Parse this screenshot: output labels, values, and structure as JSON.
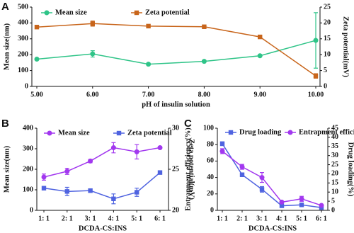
{
  "chart_data": [
    {
      "type": "line",
      "label": "A",
      "x_label": "pH of insulin solution",
      "y_label": "Mean size(nm)",
      "y2_label": "Zeta potential(mV)",
      "categories": [
        "5.00",
        "6.00",
        "7.00",
        "8.00",
        "9.00",
        "10.00"
      ],
      "ylim": [
        0,
        500
      ],
      "yticks": [
        0,
        100,
        200,
        300,
        400,
        500
      ],
      "y2lim": [
        0,
        25
      ],
      "y2ticks": [
        0,
        5,
        10,
        15,
        20,
        25
      ],
      "series": [
        {
          "name": "Mean size",
          "color": "#2fc488",
          "marker": "circle",
          "values": [
            172,
            205,
            140,
            158,
            193,
            290
          ],
          "errors": [
            5,
            20,
            5,
            5,
            5,
            175
          ]
        },
        {
          "name": "Zeta potential",
          "color": "#c8651b",
          "marker": "square",
          "axis": "y2",
          "values": [
            18.7,
            19.8,
            19.0,
            18.8,
            15.6,
            3.3
          ],
          "errors": [
            0.3,
            0.8,
            0.3,
            0.3,
            0.3,
            0.7
          ]
        }
      ]
    },
    {
      "type": "line",
      "label": "B",
      "x_label": "DCDA-CS:INS",
      "y_label": "Mean size(nm)",
      "y2_label": "Zeta potential(mV)",
      "categories": [
        "1: 1",
        "2: 1",
        "3: 1",
        "4: 1",
        "5: 1",
        "6: 1"
      ],
      "ylim": [
        0,
        400
      ],
      "yticks": [
        0,
        100,
        200,
        300,
        400
      ],
      "y2lim": [
        20,
        30
      ],
      "y2ticks": [
        20,
        25,
        30
      ],
      "series": [
        {
          "name": "Mean size",
          "color": "#a238ef",
          "marker": "circle",
          "values": [
            162,
            190,
            240,
            305,
            285,
            305
          ],
          "errors": [
            15,
            15,
            8,
            25,
            35,
            5
          ]
        },
        {
          "name": "Zeta potential",
          "color": "#4f63e0",
          "marker": "square",
          "axis": "y2",
          "values": [
            22.7,
            22.3,
            22.4,
            21.4,
            22.2,
            24.6
          ],
          "errors": [
            0.2,
            0.5,
            0.2,
            0.6,
            0.5,
            0.2
          ]
        }
      ]
    },
    {
      "type": "line",
      "label": "C",
      "x_label": "DCDA-CS:INS",
      "y_label": "Entrapment efficiency(%)",
      "y2_label": "Drug loading(%)",
      "categories": [
        "1: 1",
        "2: 1",
        "3: 1",
        "4: 1",
        "5: 1",
        "6: 1"
      ],
      "ylim": [
        0,
        100
      ],
      "yticks": [
        0,
        20,
        40,
        60,
        80,
        100
      ],
      "y2lim": [
        0,
        45
      ],
      "y2ticks": [
        0,
        5,
        10,
        15,
        20,
        25,
        30,
        35,
        40,
        45
      ],
      "series": [
        {
          "name": "Drug loading",
          "color": "#4f63e0",
          "marker": "square",
          "axis": "y2",
          "values": [
            36.5,
            19.5,
            11.5,
            2.5,
            3,
            1.5
          ],
          "errors": [
            1,
            1,
            1.5,
            0.3,
            0.5,
            0.3
          ]
        },
        {
          "name": "Entrapment efficiency",
          "color": "#a238ef",
          "marker": "circle",
          "values": [
            72,
            53,
            40,
            10,
            14,
            6
          ],
          "errors": [
            3,
            3,
            6,
            1,
            3,
            1
          ]
        }
      ]
    }
  ]
}
